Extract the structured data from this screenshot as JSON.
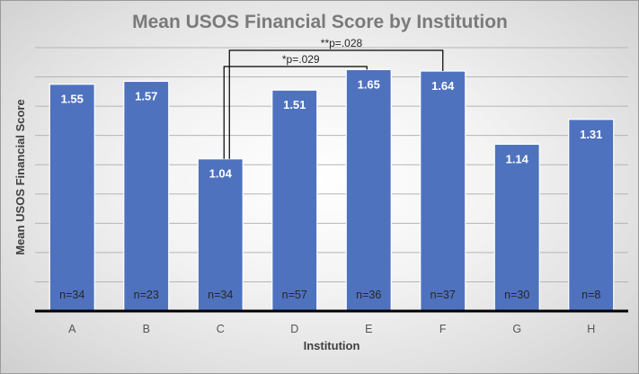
{
  "chart_data": {
    "type": "bar",
    "title": "Mean USOS Financial Score by Institution",
    "xlabel": "Institution",
    "ylabel": "Mean USOS Financial Score",
    "categories": [
      "A",
      "B",
      "C",
      "D",
      "E",
      "F",
      "G",
      "H"
    ],
    "values": [
      1.55,
      1.57,
      1.04,
      1.51,
      1.65,
      1.64,
      1.14,
      1.31
    ],
    "value_labels": [
      "1.55",
      "1.57",
      "1.04",
      "1.51",
      "1.65",
      "1.64",
      "1.14",
      "1.31"
    ],
    "n_labels": [
      "n=34",
      "n=23",
      "n=34",
      "n=57",
      "n=36",
      "n=37",
      "n=30",
      "n=8"
    ],
    "ylim": [
      0,
      1.8
    ],
    "grid": true,
    "y_tick_labels_shown": false,
    "bar_color": "#4f72be",
    "significance": [
      {
        "from": "C",
        "to": "E",
        "label": "*p=.029"
      },
      {
        "from": "C",
        "to": "F",
        "label": "**p=.028"
      }
    ]
  }
}
